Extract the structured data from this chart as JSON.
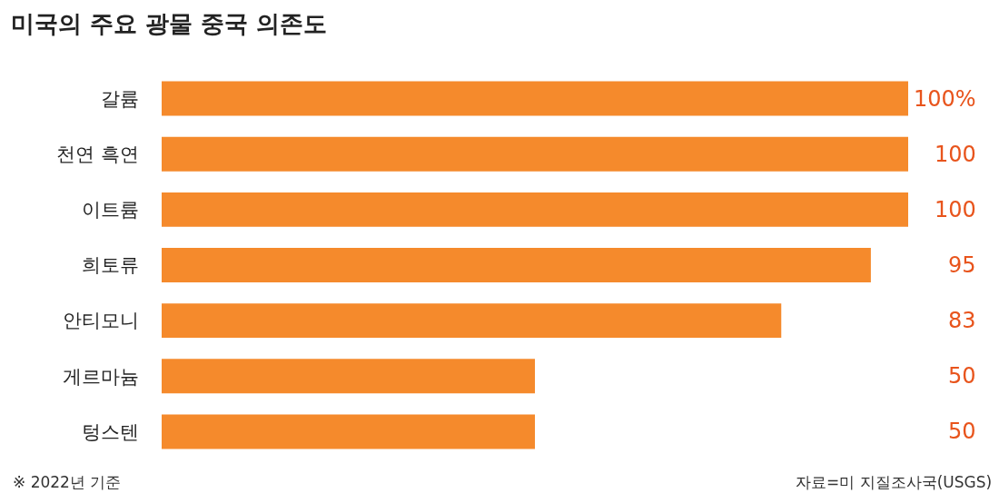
{
  "chart_data": {
    "type": "bar",
    "orientation": "horizontal",
    "title": "미국의 주요 광물 중국 의존도",
    "categories": [
      "갈륨",
      "천연 흑연",
      "이트륨",
      "희토류",
      "안티모니",
      "게르마늄",
      "텅스텐"
    ],
    "values": [
      100,
      100,
      100,
      95,
      83,
      50,
      50
    ],
    "value_labels": [
      "100%",
      "100",
      "100",
      "95",
      "83",
      "50",
      "50"
    ],
    "color": "#f58a2c",
    "xlim": [
      0,
      100
    ],
    "annotations": [
      "※ 2022년 기준",
      "자료=미 지질조사국(USGS)"
    ]
  }
}
